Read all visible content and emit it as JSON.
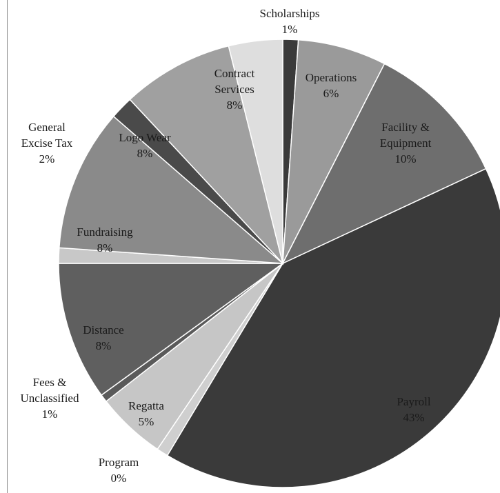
{
  "chart_data": {
    "type": "pie",
    "title": "",
    "slices": [
      {
        "name": "Scholarships",
        "value": 1,
        "label": "1%",
        "color": "#3a3a3a",
        "text_color": "#111111"
      },
      {
        "name": "Operations",
        "value": 6,
        "label": "6%",
        "color": "#9a9a9a",
        "text_color": "#111111"
      },
      {
        "name": "Facility & Equipment",
        "value": 10,
        "label": "10%",
        "color": "#6e6e6e",
        "text_color": "#111111"
      },
      {
        "name": "Payroll",
        "value": 43,
        "label": "43%",
        "color": "#3a3a3a",
        "text_color": "#111111"
      },
      {
        "name": "Program",
        "value": 0,
        "label": "0%",
        "color": "#cfcfcf",
        "text_color": "#111111"
      },
      {
        "name": "Regatta",
        "value": 5,
        "label": "5%",
        "color": "#c6c6c6",
        "text_color": "#111111"
      },
      {
        "name": "Fees & Unclassified",
        "value": 1,
        "label": "1%",
        "color": "#5a5a5a",
        "text_color": "#111111"
      },
      {
        "name": "Distance",
        "value": 8,
        "label": "8%",
        "color": "#5f5f5f",
        "text_color": "#111111"
      },
      {
        "name": "",
        "value": 1,
        "label": "",
        "color": "#c8c8c8",
        "text_color": "#111111"
      },
      {
        "name": "Fundraising",
        "value": 8,
        "label": "8%",
        "color": "#8a8a8a",
        "text_color": "#111111"
      },
      {
        "name": "General Excise Tax",
        "value": 2,
        "label": "2%",
        "color": "#4a4a4a",
        "text_color": "#111111"
      },
      {
        "name": "Logo Wear",
        "value": 8,
        "label": "8%",
        "color": "#a0a0a0",
        "text_color": "#111111"
      },
      {
        "name": "Contract Services",
        "value": 8,
        "label": "8%",
        "color": "#dedede",
        "text_color": "#111111"
      }
    ]
  },
  "labels": [
    {
      "lines": [
        "Scholarships",
        "1%"
      ]
    },
    {
      "lines": [
        "Operations",
        "6%"
      ]
    },
    {
      "lines": [
        "Facility &",
        "Equipment",
        "10%"
      ]
    },
    {
      "lines": [
        "Payroll",
        "43%"
      ]
    },
    {
      "lines": [
        "Program",
        "0%"
      ]
    },
    {
      "lines": [
        "Regatta",
        "5%"
      ]
    },
    {
      "lines": [
        "Fees &",
        "Unclassified",
        "1%"
      ]
    },
    {
      "lines": [
        "Distance",
        "8%"
      ]
    },
    {
      "lines": [
        "Fundraising",
        "8%"
      ]
    },
    {
      "lines": [
        "General",
        "Excise Tax",
        "2%"
      ]
    },
    {
      "lines": [
        "Logo Wear",
        "8%"
      ]
    },
    {
      "lines": [
        "Contract",
        "Services",
        "8%"
      ]
    }
  ]
}
